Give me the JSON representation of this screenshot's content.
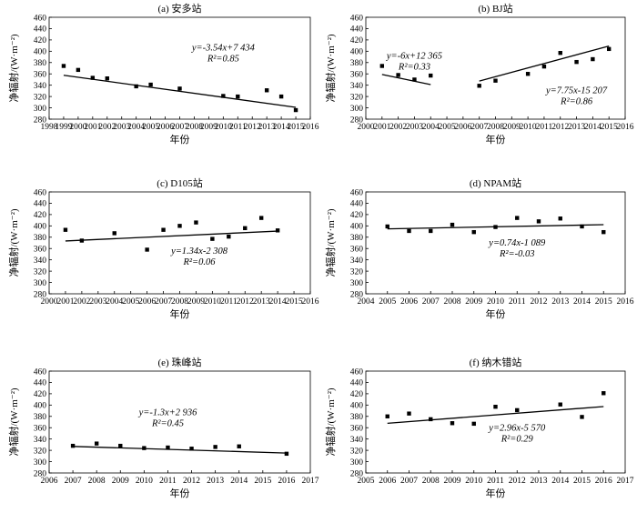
{
  "figure": {
    "ylabel": "净辐射/(W·m⁻²)",
    "xlabel": "年份"
  },
  "chart_data": [
    {
      "type": "scatter",
      "title": "(a) 安多站",
      "xlim": [
        1998,
        2016
      ],
      "ylim": [
        280,
        460
      ],
      "xticks": [
        "1998",
        "1999",
        "2000",
        "2001",
        "2002",
        "2003",
        "2004",
        "2005",
        "2006",
        "2007",
        "2008",
        "2009",
        "2010",
        "2011",
        "2012",
        "2013",
        "2014",
        "2015",
        "2016"
      ],
      "yticks": [
        "280",
        "300",
        "320",
        "340",
        "360",
        "380",
        "400",
        "420",
        "440",
        "460"
      ],
      "points": [
        [
          1999,
          374
        ],
        [
          2000,
          367
        ],
        [
          2001,
          353
        ],
        [
          2002,
          352
        ],
        [
          2004,
          338
        ],
        [
          2005,
          341
        ],
        [
          2007,
          334
        ],
        [
          2010,
          321
        ],
        [
          2011,
          320
        ],
        [
          2013,
          331
        ],
        [
          2014,
          320
        ],
        [
          2015,
          296
        ]
      ],
      "fits": [
        {
          "x": [
            1999,
            2015
          ],
          "slope": -3.54,
          "intercept": 7434
        }
      ],
      "annotations": [
        {
          "eq": "y=-3.54x+7 434",
          "r2": "R²=0.85",
          "pos": [
            2010,
            401
          ]
        }
      ]
    },
    {
      "type": "scatter",
      "title": "(b) BJ站",
      "xlim": [
        2000,
        2016
      ],
      "ylim": [
        280,
        460
      ],
      "xticks": [
        "2000",
        "2001",
        "2002",
        "2003",
        "2004",
        "2005",
        "2006",
        "2007",
        "2008",
        "2009",
        "2010",
        "2011",
        "2012",
        "2013",
        "2014",
        "2015",
        "2016"
      ],
      "yticks": [
        "280",
        "300",
        "320",
        "340",
        "360",
        "380",
        "400",
        "420",
        "440",
        "460"
      ],
      "points": [
        [
          2001,
          374
        ],
        [
          2002,
          358
        ],
        [
          2003,
          350
        ],
        [
          2004,
          357
        ],
        [
          2007,
          339
        ],
        [
          2008,
          348
        ],
        [
          2010,
          360
        ],
        [
          2011,
          373
        ],
        [
          2012,
          397
        ],
        [
          2013,
          381
        ],
        [
          2014,
          386
        ],
        [
          2015,
          404
        ]
      ],
      "fits": [
        {
          "x": [
            2001,
            2004
          ],
          "slope": -6,
          "intercept": 12365
        },
        {
          "x": [
            2007,
            2015
          ],
          "slope": 7.75,
          "intercept": -15207
        }
      ],
      "annotations": [
        {
          "eq": "y=-6x+12 365",
          "r2": "R²=0.33",
          "pos": [
            2003,
            387
          ]
        },
        {
          "eq": "y=7.75x-15 207",
          "r2": "R²=0.86",
          "pos": [
            2013,
            326
          ]
        }
      ]
    },
    {
      "type": "scatter",
      "title": "(c) D105站",
      "xlim": [
        2000,
        2016
      ],
      "ylim": [
        280,
        460
      ],
      "xticks": [
        "2000",
        "2001",
        "2002",
        "2003",
        "2004",
        "2005",
        "2006",
        "2007",
        "2008",
        "2009",
        "2010",
        "2011",
        "2012",
        "2013",
        "2014",
        "2015",
        "2016"
      ],
      "yticks": [
        "280",
        "300",
        "320",
        "340",
        "360",
        "380",
        "400",
        "420",
        "440",
        "460"
      ],
      "points": [
        [
          2001,
          393
        ],
        [
          2002,
          374
        ],
        [
          2004,
          387
        ],
        [
          2006,
          358
        ],
        [
          2007,
          393
        ],
        [
          2008,
          400
        ],
        [
          2009,
          406
        ],
        [
          2010,
          377
        ],
        [
          2011,
          381
        ],
        [
          2012,
          396
        ],
        [
          2013,
          414
        ],
        [
          2014,
          392
        ]
      ],
      "fits": [
        {
          "x": [
            2001,
            2014
          ],
          "slope": 1.34,
          "intercept": -2308
        }
      ],
      "annotations": [
        {
          "eq": "y=1.34x-2 308",
          "r2": "R²=0.06",
          "pos": [
            2009.2,
            351
          ]
        }
      ]
    },
    {
      "type": "scatter",
      "title": "(d) NPAM站",
      "xlim": [
        2004,
        2016
      ],
      "ylim": [
        280,
        460
      ],
      "xticks": [
        "2004",
        "2005",
        "2006",
        "2007",
        "2008",
        "2009",
        "2010",
        "2011",
        "2012",
        "2013",
        "2014",
        "2015",
        "2016"
      ],
      "yticks": [
        "280",
        "300",
        "320",
        "340",
        "360",
        "380",
        "400",
        "420",
        "440",
        "460"
      ],
      "points": [
        [
          2005,
          399
        ],
        [
          2006,
          391
        ],
        [
          2007,
          391
        ],
        [
          2008,
          402
        ],
        [
          2009,
          389
        ],
        [
          2010,
          398
        ],
        [
          2011,
          414
        ],
        [
          2012,
          408
        ],
        [
          2013,
          413
        ],
        [
          2014,
          399
        ],
        [
          2015,
          389
        ]
      ],
      "fits": [
        {
          "x": [
            2005,
            2015
          ],
          "slope": 0.74,
          "intercept": -1089
        }
      ],
      "annotations": [
        {
          "eq": "y=0.74x-1 089",
          "r2": "R²=-0.03",
          "pos": [
            2011,
            365
          ]
        }
      ]
    },
    {
      "type": "scatter",
      "title": "(e) 珠峰站",
      "xlim": [
        2006,
        2017
      ],
      "ylim": [
        280,
        460
      ],
      "xticks": [
        "2006",
        "2007",
        "2008",
        "2009",
        "2010",
        "2011",
        "2012",
        "2013",
        "2014",
        "2015",
        "2016",
        "2017"
      ],
      "yticks": [
        "280",
        "300",
        "320",
        "340",
        "360",
        "380",
        "400",
        "420",
        "440",
        "460"
      ],
      "points": [
        [
          2007,
          328
        ],
        [
          2008,
          332
        ],
        [
          2009,
          328
        ],
        [
          2010,
          324
        ],
        [
          2011,
          325
        ],
        [
          2012,
          323
        ],
        [
          2013,
          326
        ],
        [
          2014,
          327
        ],
        [
          2016,
          314
        ]
      ],
      "fits": [
        {
          "x": [
            2007,
            2016
          ],
          "slope": -1.3,
          "intercept": 2936
        }
      ],
      "annotations": [
        {
          "eq": "y=-1.3x+2 936",
          "r2": "R²=0.45",
          "pos": [
            2011,
            382
          ]
        }
      ]
    },
    {
      "type": "scatter",
      "title": "(f) 纳木错站",
      "xlim": [
        2005,
        2017
      ],
      "ylim": [
        280,
        460
      ],
      "xticks": [
        "2005",
        "2006",
        "2007",
        "2008",
        "2009",
        "2010",
        "2011",
        "2012",
        "2013",
        "2014",
        "2015",
        "2016",
        "2017"
      ],
      "yticks": [
        "280",
        "300",
        "320",
        "340",
        "360",
        "380",
        "400",
        "420",
        "440",
        "460"
      ],
      "points": [
        [
          2006,
          380
        ],
        [
          2007,
          385
        ],
        [
          2008,
          375
        ],
        [
          2009,
          368
        ],
        [
          2010,
          367
        ],
        [
          2011,
          397
        ],
        [
          2012,
          391
        ],
        [
          2014,
          401
        ],
        [
          2015,
          379
        ],
        [
          2016,
          421
        ]
      ],
      "fits": [
        {
          "x": [
            2006,
            2016
          ],
          "slope": 2.96,
          "intercept": -5570
        }
      ],
      "annotations": [
        {
          "eq": "y=2.96x-5 570",
          "r2": "R²=0.29",
          "pos": [
            2012,
            355
          ]
        }
      ]
    }
  ]
}
